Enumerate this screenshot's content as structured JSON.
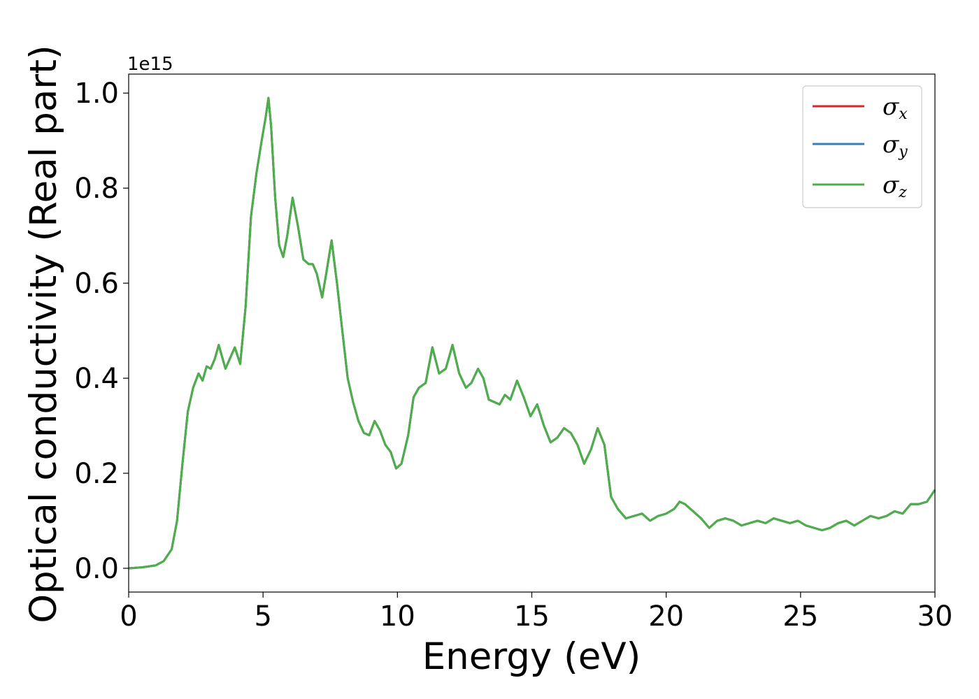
{
  "chart_data": {
    "type": "line",
    "xlabel": "Energy (eV)",
    "ylabel": "Optical conductivity (Real part)",
    "y_offset_label": "1e15",
    "xlim": [
      0,
      30
    ],
    "ylim": [
      -0.05,
      1.04
    ],
    "x_ticks": [
      0,
      5,
      10,
      15,
      20,
      25,
      30
    ],
    "x_tick_labels": [
      "0",
      "5",
      "10",
      "15",
      "20",
      "25",
      "30"
    ],
    "y_ticks": [
      0.0,
      0.2,
      0.4,
      0.6,
      0.8,
      1.0
    ],
    "y_tick_labels": [
      "0.0",
      "0.2",
      "0.4",
      "0.6",
      "0.8",
      "1.0"
    ],
    "grid": false,
    "legend_position": "top-right",
    "x": [
      0,
      0.5,
      1.0,
      1.3,
      1.6,
      1.8,
      2.0,
      2.2,
      2.4,
      2.6,
      2.75,
      2.9,
      3.05,
      3.2,
      3.35,
      3.6,
      3.95,
      4.15,
      4.35,
      4.55,
      4.75,
      4.95,
      5.1,
      5.2,
      5.3,
      5.45,
      5.6,
      5.75,
      5.9,
      6.1,
      6.3,
      6.5,
      6.7,
      6.85,
      7.0,
      7.2,
      7.35,
      7.55,
      7.75,
      7.95,
      8.15,
      8.35,
      8.55,
      8.75,
      8.95,
      9.15,
      9.35,
      9.55,
      9.75,
      9.95,
      10.15,
      10.4,
      10.6,
      10.8,
      11.05,
      11.3,
      11.55,
      11.8,
      12.05,
      12.3,
      12.55,
      12.75,
      13.0,
      13.2,
      13.4,
      13.6,
      13.8,
      14.0,
      14.2,
      14.45,
      14.7,
      14.95,
      15.2,
      15.45,
      15.7,
      15.95,
      16.2,
      16.45,
      16.7,
      16.95,
      17.2,
      17.45,
      17.7,
      17.95,
      18.2,
      18.5,
      18.8,
      19.1,
      19.4,
      19.7,
      20.0,
      20.3,
      20.5,
      20.7,
      21.0,
      21.3,
      21.6,
      21.9,
      22.2,
      22.5,
      22.8,
      23.1,
      23.4,
      23.7,
      24.0,
      24.3,
      24.6,
      24.9,
      25.2,
      25.5,
      25.8,
      26.1,
      26.4,
      26.7,
      27.0,
      27.3,
      27.6,
      27.9,
      28.2,
      28.5,
      28.8,
      29.1,
      29.4,
      29.7,
      30.0
    ],
    "series": [
      {
        "name": "σ_x",
        "color": "#d62728",
        "values": [
          0.0,
          0.002,
          0.006,
          0.015,
          0.04,
          0.1,
          0.22,
          0.33,
          0.38,
          0.41,
          0.395,
          0.425,
          0.42,
          0.44,
          0.47,
          0.42,
          0.465,
          0.43,
          0.55,
          0.74,
          0.83,
          0.9,
          0.95,
          0.99,
          0.93,
          0.78,
          0.68,
          0.655,
          0.7,
          0.78,
          0.72,
          0.65,
          0.64,
          0.64,
          0.62,
          0.57,
          0.62,
          0.69,
          0.6,
          0.5,
          0.4,
          0.35,
          0.31,
          0.285,
          0.28,
          0.31,
          0.29,
          0.26,
          0.245,
          0.21,
          0.22,
          0.28,
          0.36,
          0.38,
          0.39,
          0.465,
          0.41,
          0.42,
          0.47,
          0.41,
          0.38,
          0.39,
          0.42,
          0.4,
          0.355,
          0.35,
          0.345,
          0.365,
          0.355,
          0.395,
          0.36,
          0.32,
          0.345,
          0.3,
          0.265,
          0.275,
          0.295,
          0.285,
          0.26,
          0.22,
          0.25,
          0.295,
          0.26,
          0.15,
          0.125,
          0.105,
          0.11,
          0.115,
          0.1,
          0.11,
          0.115,
          0.125,
          0.14,
          0.135,
          0.12,
          0.105,
          0.085,
          0.1,
          0.105,
          0.1,
          0.09,
          0.095,
          0.1,
          0.095,
          0.105,
          0.1,
          0.095,
          0.1,
          0.09,
          0.085,
          0.08,
          0.085,
          0.095,
          0.1,
          0.09,
          0.1,
          0.11,
          0.105,
          0.11,
          0.12,
          0.115,
          0.135,
          0.135,
          0.14,
          0.165
        ]
      },
      {
        "name": "σ_y",
        "color": "#377eb8",
        "values": [
          0.0,
          0.002,
          0.006,
          0.015,
          0.04,
          0.1,
          0.22,
          0.33,
          0.38,
          0.41,
          0.395,
          0.425,
          0.42,
          0.44,
          0.47,
          0.42,
          0.465,
          0.43,
          0.55,
          0.74,
          0.83,
          0.9,
          0.95,
          0.99,
          0.93,
          0.78,
          0.68,
          0.655,
          0.7,
          0.78,
          0.72,
          0.65,
          0.64,
          0.64,
          0.62,
          0.57,
          0.62,
          0.69,
          0.6,
          0.5,
          0.4,
          0.35,
          0.31,
          0.285,
          0.28,
          0.31,
          0.29,
          0.26,
          0.245,
          0.21,
          0.22,
          0.28,
          0.36,
          0.38,
          0.39,
          0.465,
          0.41,
          0.42,
          0.47,
          0.41,
          0.38,
          0.39,
          0.42,
          0.4,
          0.355,
          0.35,
          0.345,
          0.365,
          0.355,
          0.395,
          0.36,
          0.32,
          0.345,
          0.3,
          0.265,
          0.275,
          0.295,
          0.285,
          0.26,
          0.22,
          0.25,
          0.295,
          0.26,
          0.15,
          0.125,
          0.105,
          0.11,
          0.115,
          0.1,
          0.11,
          0.115,
          0.125,
          0.14,
          0.135,
          0.12,
          0.105,
          0.085,
          0.1,
          0.105,
          0.1,
          0.09,
          0.095,
          0.1,
          0.095,
          0.105,
          0.1,
          0.095,
          0.1,
          0.09,
          0.085,
          0.08,
          0.085,
          0.095,
          0.1,
          0.09,
          0.1,
          0.11,
          0.105,
          0.11,
          0.12,
          0.115,
          0.135,
          0.135,
          0.14,
          0.165
        ]
      },
      {
        "name": "σ_z",
        "color": "#4daf4a",
        "values": [
          0.0,
          0.002,
          0.006,
          0.015,
          0.04,
          0.1,
          0.22,
          0.33,
          0.38,
          0.41,
          0.395,
          0.425,
          0.42,
          0.44,
          0.47,
          0.42,
          0.465,
          0.43,
          0.55,
          0.74,
          0.83,
          0.9,
          0.95,
          0.99,
          0.93,
          0.78,
          0.68,
          0.655,
          0.7,
          0.78,
          0.72,
          0.65,
          0.64,
          0.64,
          0.62,
          0.57,
          0.62,
          0.69,
          0.6,
          0.5,
          0.4,
          0.35,
          0.31,
          0.285,
          0.28,
          0.31,
          0.29,
          0.26,
          0.245,
          0.21,
          0.22,
          0.28,
          0.36,
          0.38,
          0.39,
          0.465,
          0.41,
          0.42,
          0.47,
          0.41,
          0.38,
          0.39,
          0.42,
          0.4,
          0.355,
          0.35,
          0.345,
          0.365,
          0.355,
          0.395,
          0.36,
          0.32,
          0.345,
          0.3,
          0.265,
          0.275,
          0.295,
          0.285,
          0.26,
          0.22,
          0.25,
          0.295,
          0.26,
          0.15,
          0.125,
          0.105,
          0.11,
          0.115,
          0.1,
          0.11,
          0.115,
          0.125,
          0.14,
          0.135,
          0.12,
          0.105,
          0.085,
          0.1,
          0.105,
          0.1,
          0.09,
          0.095,
          0.1,
          0.095,
          0.105,
          0.1,
          0.095,
          0.1,
          0.09,
          0.085,
          0.08,
          0.085,
          0.095,
          0.1,
          0.09,
          0.1,
          0.11,
          0.105,
          0.11,
          0.12,
          0.115,
          0.135,
          0.135,
          0.14,
          0.165
        ]
      }
    ],
    "legend": [
      {
        "symbol": "σ",
        "sub": "x",
        "color": "#d62728"
      },
      {
        "symbol": "σ",
        "sub": "y",
        "color": "#377eb8"
      },
      {
        "symbol": "σ",
        "sub": "z",
        "color": "#4daf4a"
      }
    ]
  }
}
